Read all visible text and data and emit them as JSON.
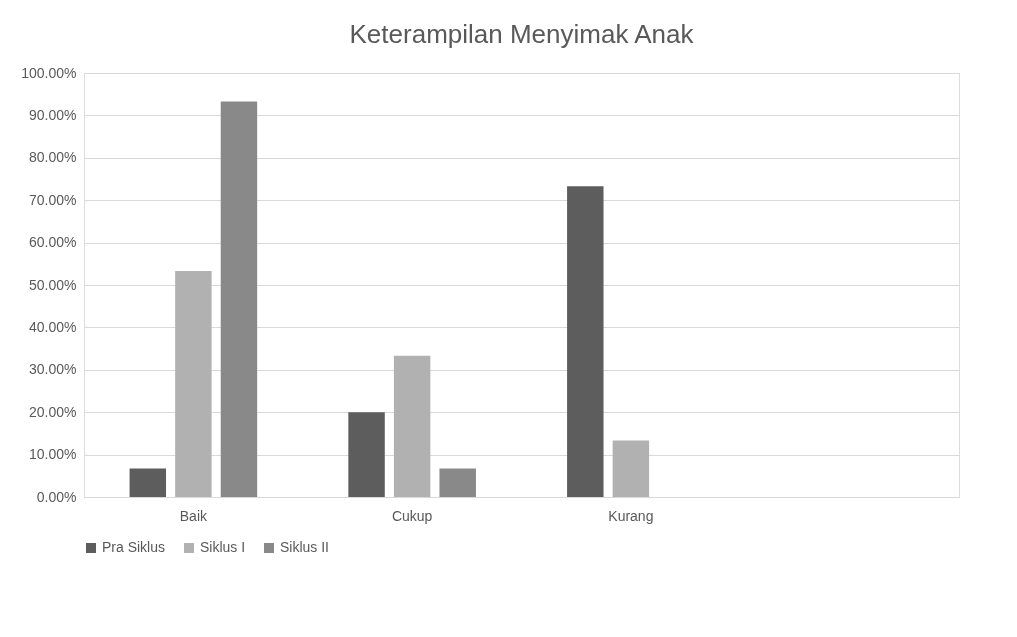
{
  "chart_data": {
    "type": "bar",
    "title": "Keterampilan Menyimak Anak",
    "categories": [
      "Baik",
      "Cukup",
      "Kurang",
      null
    ],
    "series": [
      {
        "name": "Pra Siklus",
        "color": "#5d5d5d",
        "values": [
          6.7,
          20,
          73.3,
          null
        ]
      },
      {
        "name": "Siklus I",
        "color": "#b1b1b1",
        "values": [
          53.3,
          33.3,
          13.3,
          null
        ]
      },
      {
        "name": "Siklus II",
        "color": "#898989",
        "values": [
          93.3,
          6.7,
          0,
          null
        ]
      }
    ],
    "ylim": [
      0,
      100
    ],
    "yticks": [
      {
        "value": 0,
        "label": "0.00%"
      },
      {
        "value": 10,
        "label": "10.00%"
      },
      {
        "value": 20,
        "label": "20.00%"
      },
      {
        "value": 30,
        "label": "30.00%"
      },
      {
        "value": 40,
        "label": "40.00%"
      },
      {
        "value": 50,
        "label": "50.00%"
      },
      {
        "value": 60,
        "label": "60.00%"
      },
      {
        "value": 70,
        "label": "70.00%"
      },
      {
        "value": 80,
        "label": "80.00%"
      },
      {
        "value": 90,
        "label": "90.00%"
      },
      {
        "value": 100,
        "label": "100.00%"
      }
    ],
    "grid": "y",
    "legend": "bottom"
  }
}
